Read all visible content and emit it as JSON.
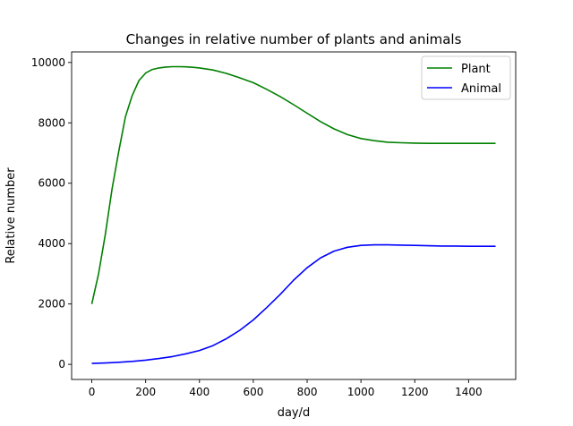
{
  "chart_data": {
    "type": "line",
    "title": "Changes in relative number of plants and animals",
    "xlabel": "day/d",
    "ylabel": "Relative number",
    "xlim": [
      -75,
      1575
    ],
    "ylim": [
      -500,
      10350
    ],
    "xticks": [
      0,
      200,
      400,
      600,
      800,
      1000,
      1200,
      1400
    ],
    "yticks": [
      0,
      2000,
      4000,
      6000,
      8000,
      10000
    ],
    "grid": false,
    "legend_position": "top-right",
    "series": [
      {
        "name": "Plant",
        "color": "#008000",
        "x": [
          0,
          25,
          50,
          75,
          100,
          125,
          150,
          175,
          200,
          225,
          250,
          275,
          300,
          325,
          350,
          375,
          400,
          450,
          500,
          550,
          600,
          650,
          700,
          750,
          800,
          850,
          900,
          950,
          1000,
          1050,
          1100,
          1150,
          1200,
          1250,
          1300,
          1350,
          1400,
          1450,
          1500
        ],
        "y": [
          2000,
          3000,
          4300,
          5800,
          7050,
          8200,
          8900,
          9400,
          9650,
          9770,
          9820,
          9850,
          9860,
          9860,
          9855,
          9840,
          9820,
          9750,
          9640,
          9490,
          9330,
          9110,
          8870,
          8600,
          8320,
          8040,
          7800,
          7610,
          7480,
          7410,
          7360,
          7340,
          7330,
          7320,
          7320,
          7320,
          7320,
          7320,
          7320
        ]
      },
      {
        "name": "Animal",
        "color": "#0000ff",
        "x": [
          0,
          50,
          100,
          150,
          200,
          250,
          300,
          350,
          400,
          450,
          500,
          550,
          600,
          650,
          700,
          750,
          800,
          850,
          900,
          950,
          1000,
          1050,
          1100,
          1150,
          1200,
          1250,
          1300,
          1350,
          1400,
          1450,
          1500
        ],
        "y": [
          30,
          45,
          70,
          100,
          140,
          195,
          260,
          350,
          460,
          620,
          850,
          1130,
          1470,
          1880,
          2320,
          2790,
          3200,
          3530,
          3750,
          3880,
          3940,
          3960,
          3960,
          3950,
          3940,
          3930,
          3920,
          3920,
          3910,
          3910,
          3910
        ]
      }
    ]
  }
}
